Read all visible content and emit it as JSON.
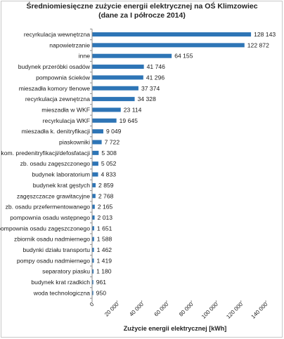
{
  "chart_data": {
    "type": "bar",
    "orientation": "horizontal",
    "title_line1": "Średniomiesięczne zużycie energii elektrycznej na OŚ Klimzowiec",
    "title_line2": "(dane za I półrocze 2014)",
    "xlabel": "Zużycie energii elektrycznej [kWh]",
    "ylabel": "",
    "xlim": [
      0,
      140000
    ],
    "x_ticks": [
      0,
      20000,
      40000,
      60000,
      80000,
      100000,
      120000,
      140000
    ],
    "x_tick_labels": [
      "0",
      "20 000",
      "40 000",
      "60 000",
      "80 000",
      "100 000",
      "120 000",
      "140 000"
    ],
    "bar_color": "#2e75b6",
    "grid": false,
    "categories": [
      "recyrkulacja wewnętrzna",
      "napowietrzanie",
      "inne",
      "budynek przeróbki osadów",
      "pompownia ścieków",
      "mieszadła komory tlenowe",
      "recyrkulacja zewnętrzna",
      "mieszadła w WKF",
      "recyrkulacja WKF",
      "mieszadła k. denitryfikacji",
      "piaskowniki",
      "kom. predenitryfikacji/defosfatacji",
      "zb. osadu zagęszczonego",
      "budynek laboratorium",
      "budynek krat gęstych",
      "zagęszczacze grawitacyjne",
      "zb. osadu przefermentowanego",
      "pompownia osadu wstępnego",
      "pompownia osadu zagęszczonego",
      "zbiornik osadu nadmiernego",
      "budynki działu transportu",
      "pompy osadu nadmiernego",
      "separatory piasku",
      "budynek krat rzadkich",
      "woda technologiczna"
    ],
    "values": [
      128143,
      122872,
      64155,
      41746,
      41296,
      37374,
      34328,
      23114,
      19645,
      9049,
      7722,
      5308,
      5052,
      4833,
      2859,
      2768,
      2165,
      2013,
      1651,
      1588,
      1462,
      1419,
      1180,
      961,
      950
    ],
    "value_labels": [
      "128 143",
      "122 872",
      "64 155",
      "41 746",
      "41 296",
      "37 374",
      "34 328",
      "23 114",
      "19 645",
      "9 049",
      "7 722",
      "5 308",
      "5 052",
      "4 833",
      "2 859",
      "2 768",
      "2 165",
      "2 013",
      "1 651",
      "1 588",
      "1 462",
      "1 419",
      "1 180",
      "961",
      "950"
    ]
  }
}
